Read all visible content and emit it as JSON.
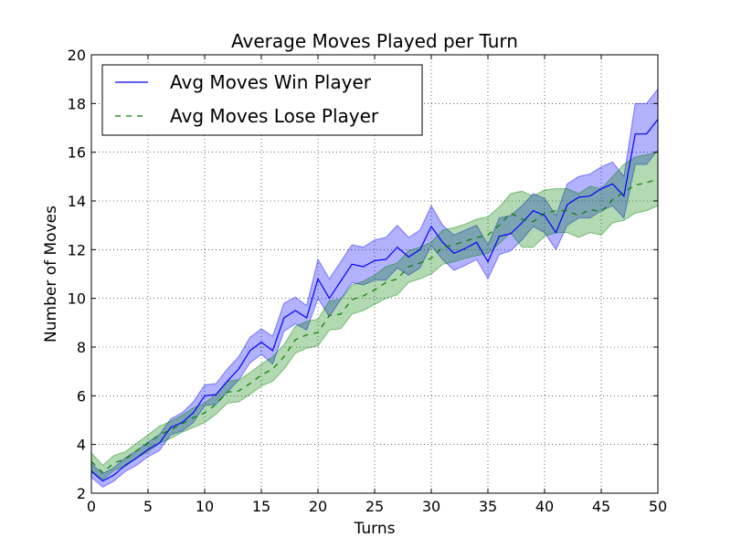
{
  "chart_data": {
    "type": "line",
    "title": "Average Moves Played per Turn",
    "xlabel": "Turns",
    "ylabel": "Number of Moves",
    "xlim": [
      0,
      50
    ],
    "ylim": [
      2,
      20
    ],
    "xticks": [
      0,
      5,
      10,
      15,
      20,
      25,
      30,
      35,
      40,
      45,
      50
    ],
    "yticks": [
      2,
      4,
      6,
      8,
      10,
      12,
      14,
      16,
      18,
      20
    ],
    "grid": true,
    "legend_position": "top-left",
    "x": [
      0,
      1,
      2,
      3,
      4,
      5,
      6,
      7,
      8,
      9,
      10,
      11,
      12,
      13,
      14,
      15,
      16,
      17,
      18,
      19,
      20,
      21,
      22,
      23,
      24,
      25,
      26,
      27,
      28,
      29,
      30,
      31,
      32,
      33,
      34,
      35,
      36,
      37,
      38,
      39,
      40,
      41,
      42,
      43,
      44,
      45,
      46,
      47,
      48,
      49,
      50
    ],
    "series": [
      {
        "name": "Avg Moves Win Player",
        "color": "#0000ff",
        "band_color": "#0000ff",
        "line_style": "solid",
        "values": [
          2.9,
          2.5,
          2.75,
          3.15,
          3.45,
          3.8,
          4.05,
          4.7,
          4.9,
          5.3,
          6.0,
          6.05,
          6.6,
          7.1,
          7.85,
          8.2,
          7.85,
          9.2,
          9.5,
          9.2,
          10.8,
          10.0,
          10.7,
          11.4,
          11.3,
          11.55,
          11.6,
          12.1,
          11.7,
          12.0,
          12.95,
          12.3,
          11.85,
          12.05,
          12.3,
          11.5,
          12.55,
          12.65,
          13.1,
          13.6,
          13.4,
          12.7,
          13.85,
          14.15,
          14.2,
          14.5,
          14.7,
          14.2,
          16.75,
          16.75,
          17.35
        ],
        "upper": [
          3.2,
          2.8,
          3.05,
          3.45,
          3.75,
          4.1,
          4.4,
          5.05,
          5.3,
          5.75,
          6.45,
          6.5,
          7.1,
          7.6,
          8.4,
          8.75,
          8.45,
          9.8,
          10.05,
          9.7,
          11.6,
          10.8,
          11.5,
          12.2,
          12.1,
          12.4,
          12.5,
          13.0,
          12.5,
          12.8,
          13.8,
          13.0,
          12.6,
          12.8,
          13.0,
          12.2,
          13.3,
          13.4,
          13.8,
          14.3,
          14.1,
          13.4,
          14.7,
          15.0,
          15.1,
          15.4,
          15.6,
          15.0,
          18.0,
          18.0,
          18.6
        ],
        "lower": [
          2.65,
          2.25,
          2.5,
          2.9,
          3.15,
          3.5,
          3.75,
          4.4,
          4.55,
          4.9,
          5.6,
          5.65,
          6.15,
          6.65,
          7.35,
          7.7,
          7.3,
          8.65,
          8.95,
          8.7,
          10.0,
          9.25,
          9.95,
          10.65,
          10.55,
          10.75,
          10.75,
          11.25,
          10.95,
          11.25,
          12.15,
          11.6,
          11.15,
          11.35,
          11.6,
          10.8,
          11.8,
          11.95,
          12.4,
          12.95,
          12.7,
          12.0,
          13.0,
          13.3,
          13.3,
          13.6,
          13.8,
          13.3,
          15.5,
          15.5,
          16.1
        ]
      },
      {
        "name": "Avg Moves Lose Player",
        "color": "#007f00",
        "band_color": "#008000",
        "line_style": "dashed",
        "values": [
          3.3,
          2.85,
          3.25,
          3.4,
          3.75,
          4.05,
          4.4,
          4.6,
          4.85,
          5.1,
          5.3,
          5.65,
          6.15,
          6.2,
          6.5,
          6.85,
          7.1,
          7.6,
          8.3,
          8.5,
          8.6,
          9.3,
          9.35,
          9.95,
          10.1,
          10.35,
          10.65,
          10.8,
          11.3,
          11.45,
          11.65,
          12.1,
          12.2,
          12.35,
          12.5,
          12.6,
          13.0,
          13.5,
          13.25,
          13.15,
          13.5,
          13.6,
          13.6,
          13.4,
          13.65,
          13.55,
          14.05,
          14.35,
          14.65,
          14.75,
          14.9
        ],
        "upper": [
          3.65,
          3.15,
          3.55,
          3.7,
          4.05,
          4.4,
          4.75,
          4.95,
          5.2,
          5.5,
          5.7,
          6.05,
          6.6,
          6.65,
          6.95,
          7.3,
          7.6,
          8.1,
          8.85,
          9.05,
          9.15,
          9.9,
          9.95,
          10.55,
          10.7,
          10.95,
          11.3,
          11.45,
          11.95,
          12.1,
          12.3,
          12.8,
          12.9,
          13.05,
          13.25,
          13.35,
          13.75,
          14.3,
          14.4,
          14.2,
          14.45,
          14.5,
          14.5,
          14.3,
          14.6,
          14.5,
          15.0,
          15.5,
          15.8,
          15.9,
          16.0
        ],
        "lower": [
          2.95,
          2.55,
          2.95,
          3.1,
          3.45,
          3.7,
          4.05,
          4.25,
          4.5,
          4.7,
          4.9,
          5.25,
          5.7,
          5.75,
          6.05,
          6.4,
          6.6,
          7.1,
          7.75,
          7.95,
          8.05,
          8.7,
          8.75,
          9.35,
          9.5,
          9.75,
          10.0,
          10.15,
          10.65,
          10.8,
          11.0,
          11.4,
          11.5,
          11.65,
          11.75,
          11.85,
          12.25,
          12.7,
          12.1,
          12.1,
          12.55,
          12.7,
          12.7,
          12.5,
          12.7,
          12.6,
          13.1,
          13.2,
          13.5,
          13.6,
          13.8
        ]
      }
    ]
  }
}
